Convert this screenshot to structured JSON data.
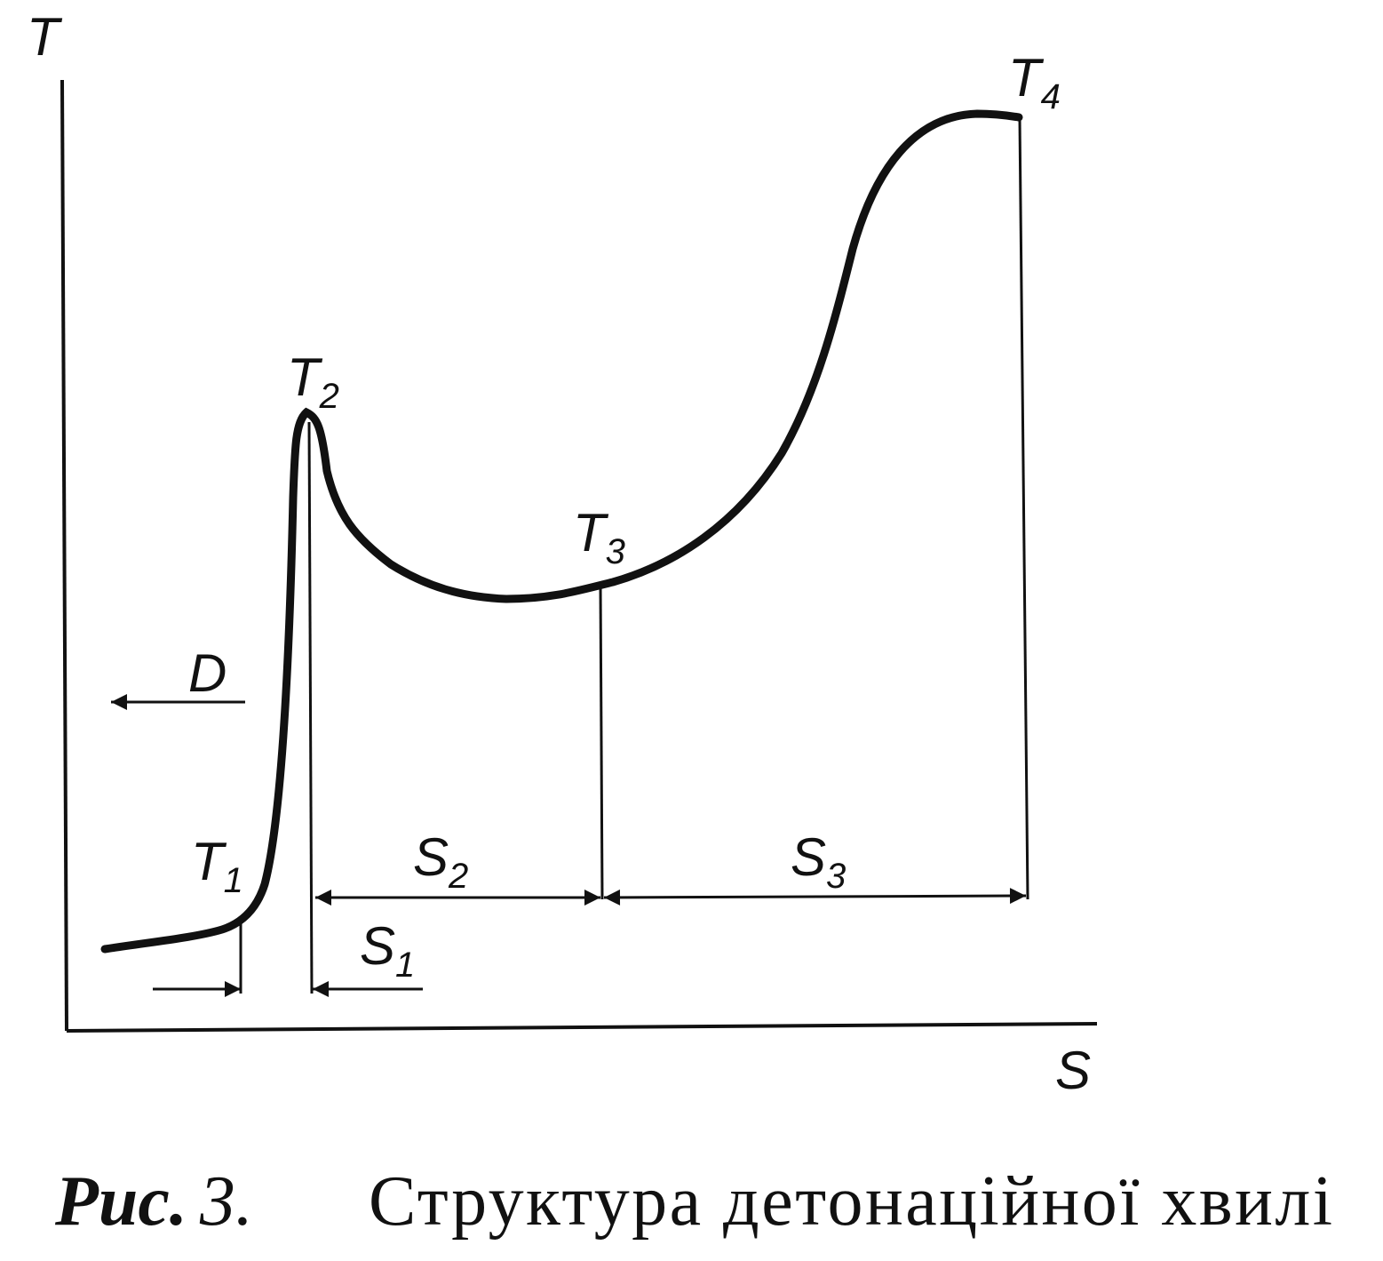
{
  "axes": {
    "y_label": "T",
    "x_label": "S"
  },
  "points": [
    {
      "base": "T",
      "sub": "1"
    },
    {
      "base": "T",
      "sub": "2"
    },
    {
      "base": "T",
      "sub": "3"
    },
    {
      "base": "T",
      "sub": "4"
    }
  ],
  "arrow_label": "D",
  "intervals": [
    {
      "base": "S",
      "sub": "1"
    },
    {
      "base": "S",
      "sub": "2"
    },
    {
      "base": "S",
      "sub": "3"
    }
  ],
  "caption": {
    "prefix": "Рис.",
    "number": "3.",
    "text": "Структура детонаційної хвилі"
  }
}
